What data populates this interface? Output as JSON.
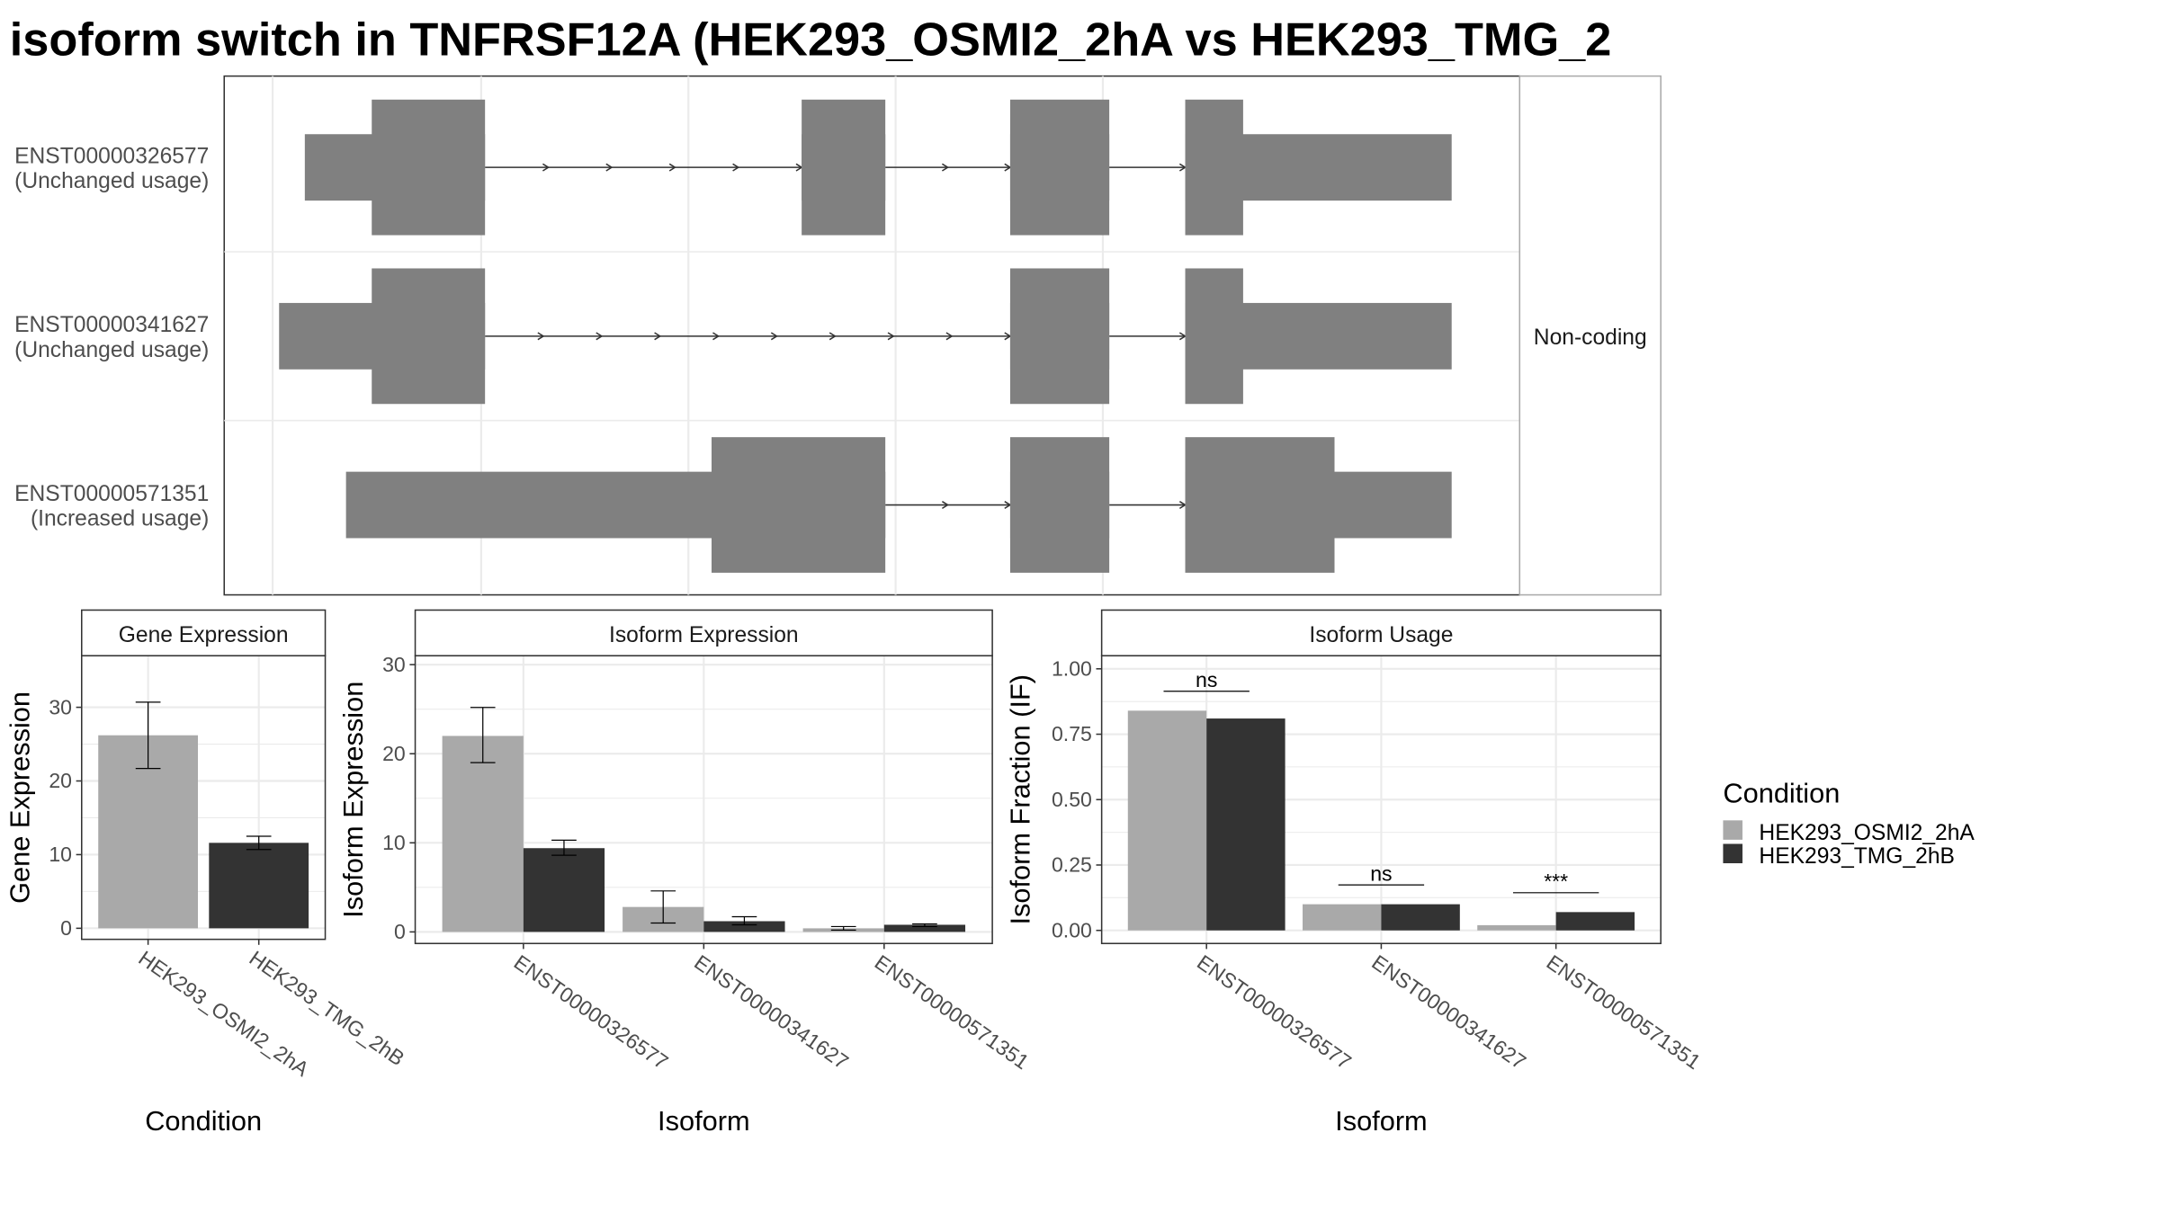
{
  "title": "isoform switch in TNFRSF12A (HEK293_OSMI2_2hA vs HEK293_TMG_2",
  "colors": {
    "exon": "#808080",
    "condition1": "#a9a9a9",
    "condition2": "#333333",
    "grid": "#ebebeb",
    "panel_border": "#333333",
    "strip_border": "#333333"
  },
  "legend": {
    "title": "Condition",
    "items": [
      {
        "label": "HEK293_OSMI2_2hA",
        "color": "#a9a9a9"
      },
      {
        "label": "HEK293_TMG_2hB",
        "color": "#333333"
      }
    ]
  },
  "transcripts": [
    {
      "id": "ENST00000326577",
      "label2": "(Unchanged usage)"
    },
    {
      "id": "ENST00000341627",
      "label2": "(Unchanged usage)"
    },
    {
      "id": "ENST00000571351",
      "label2": "(Increased usage)"
    }
  ],
  "strip_label": "Non-coding",
  "chart_data": [
    {
      "type": "gene-structure",
      "title": "isoform switch in TNFRSF12A (HEK293_OSMI2_2hA vs HEK293_TMG_2",
      "note": "exon coordinates in relative genomic units (0-100 span of plotted region)",
      "transcripts": [
        {
          "name": "ENST00000326577",
          "usage": "Unchanged usage",
          "exons": [
            {
              "start": 2.5,
              "end": 16.5,
              "coding_start": 7.7,
              "coding_end": 16.5
            },
            {
              "start": 41.1,
              "end": 47.6,
              "coding_start": 41.1,
              "coding_end": 47.6
            },
            {
              "start": 57.3,
              "end": 65.0,
              "coding_start": 57.3,
              "coding_end": 65.0
            },
            {
              "start": 70.9,
              "end": 91.6,
              "coding_start": 70.9,
              "coding_end": 75.4
            }
          ]
        },
        {
          "name": "ENST00000341627",
          "usage": "Unchanged usage",
          "exons": [
            {
              "start": 0.5,
              "end": 16.5,
              "coding_start": 7.7,
              "coding_end": 16.5
            },
            {
              "start": 57.3,
              "end": 65.0,
              "coding_start": 57.3,
              "coding_end": 65.0
            },
            {
              "start": 70.9,
              "end": 91.6,
              "coding_start": 70.9,
              "coding_end": 75.4
            }
          ]
        },
        {
          "name": "ENST00000571351",
          "usage": "Increased usage",
          "exons": [
            {
              "start": 5.7,
              "end": 47.6,
              "coding_start": 34.1,
              "coding_end": 47.6
            },
            {
              "start": 57.3,
              "end": 65.0,
              "coding_start": 57.3,
              "coding_end": 65.0
            },
            {
              "start": 70.9,
              "end": 91.6,
              "coding_start": 70.9,
              "coding_end": 82.5
            }
          ]
        }
      ]
    },
    {
      "type": "bar",
      "title": "Gene Expression",
      "xlabel": "Condition",
      "ylabel": "Gene Expression",
      "ylim": [
        -1.5,
        37
      ],
      "yticks": [
        0,
        10,
        20,
        30
      ],
      "categories": [
        "HEK293_OSMI2_2hA",
        "HEK293_TMG_2hB"
      ],
      "values": [
        26.2,
        11.6
      ],
      "errors": [
        [
          21.7,
          30.7
        ],
        [
          10.7,
          12.5
        ]
      ],
      "colors": [
        "#a9a9a9",
        "#333333"
      ]
    },
    {
      "type": "bar",
      "title": "Isoform Expression",
      "xlabel": "Isoform",
      "ylabel": "Isoform Expression",
      "ylim": [
        -1.3,
        31
      ],
      "yticks": [
        0,
        10,
        20,
        30
      ],
      "categories": [
        "ENST00000326577",
        "ENST00000341627",
        "ENST00000571351"
      ],
      "series": [
        {
          "name": "HEK293_OSMI2_2hA",
          "color": "#a9a9a9",
          "values": [
            22.0,
            2.8,
            0.4
          ],
          "errors": [
            [
              19.0,
              25.2
            ],
            [
              1.0,
              4.6
            ],
            [
              0.2,
              0.6
            ]
          ]
        },
        {
          "name": "HEK293_TMG_2hB",
          "color": "#333333",
          "values": [
            9.4,
            1.2,
            0.8
          ],
          "errors": [
            [
              8.6,
              10.3
            ],
            [
              0.8,
              1.7
            ],
            [
              0.6,
              0.9
            ]
          ]
        }
      ]
    },
    {
      "type": "bar",
      "title": "Isoform Usage",
      "xlabel": "Isoform",
      "ylabel": "Isoform Fraction (IF)",
      "ylim": [
        -0.05,
        1.05
      ],
      "yticks": [
        "0.00",
        "0.25",
        "0.50",
        "0.75",
        "1.00"
      ],
      "categories": [
        "ENST00000326577",
        "ENST00000341627",
        "ENST00000571351"
      ],
      "series": [
        {
          "name": "HEK293_OSMI2_2hA",
          "color": "#a9a9a9",
          "values": [
            0.84,
            0.1,
            0.02
          ]
        },
        {
          "name": "HEK293_TMG_2hB",
          "color": "#333333",
          "values": [
            0.81,
            0.1,
            0.07
          ]
        }
      ],
      "significance": [
        "ns",
        "ns",
        "***"
      ]
    }
  ]
}
